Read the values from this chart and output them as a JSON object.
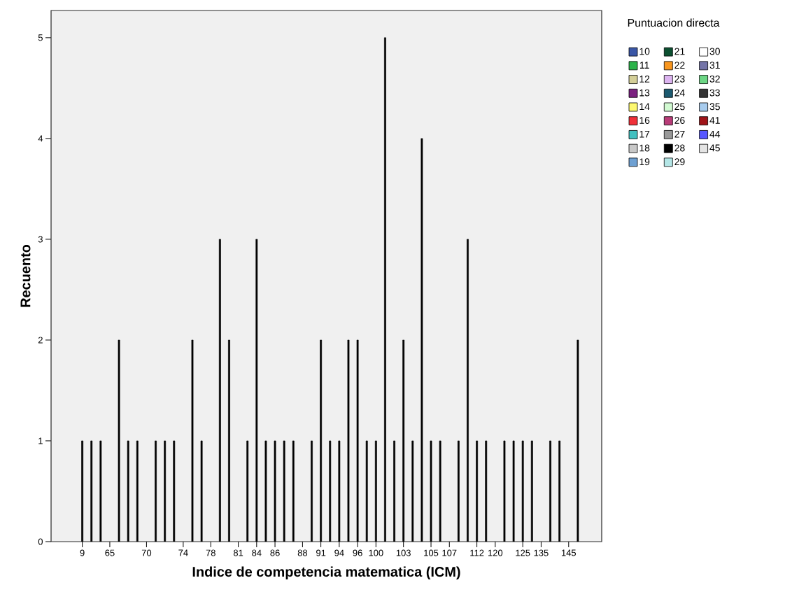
{
  "chart_data": {
    "type": "bar",
    "xlabel": "Indice de competencia matematica (ICM)",
    "ylabel": "Recuento",
    "legend_title": "Puntuacion directa",
    "legend": "top right",
    "categories": [
      "9",
      null,
      null,
      "65",
      null,
      null,
      null,
      "70",
      null,
      null,
      null,
      "74",
      null,
      null,
      "78",
      null,
      null,
      "81",
      null,
      "84",
      null,
      "86",
      null,
      null,
      "88",
      null,
      "91",
      null,
      "94",
      null,
      "96",
      null,
      "100",
      null,
      null,
      "103",
      null,
      null,
      "105",
      null,
      "107",
      null,
      null,
      "112",
      null,
      "120",
      null,
      null,
      "125",
      null,
      "135",
      null,
      null,
      "145",
      null
    ],
    "ylim": [
      0,
      5.27
    ],
    "yticks": [
      0,
      1,
      2,
      3,
      4,
      5
    ],
    "series": [
      {
        "color": "#000000",
        "values": [
          1,
          1,
          1,
          null,
          2,
          1,
          1,
          null,
          1,
          1,
          1,
          null,
          2,
          1,
          null,
          3,
          2,
          null,
          1,
          3,
          1,
          1,
          1,
          1,
          null,
          1,
          2,
          1,
          1,
          2,
          2,
          1,
          1,
          5,
          1,
          2,
          1,
          4,
          1,
          1,
          null,
          1,
          3,
          1,
          1,
          null,
          1,
          1,
          1,
          1,
          null,
          1,
          1,
          null,
          2
        ]
      },
      {
        "name": "10",
        "color": "#3a56a6",
        "values": [
          null,
          null,
          null,
          null,
          null,
          null,
          null,
          null,
          null,
          null,
          null,
          null,
          null,
          null,
          null,
          null,
          null,
          null,
          null,
          null,
          null,
          null,
          null,
          null,
          null,
          null,
          null,
          null,
          null,
          null,
          null,
          null,
          null,
          null,
          null,
          null,
          null,
          null,
          null,
          null,
          null,
          null,
          null,
          null,
          null,
          null,
          null,
          null,
          null,
          null,
          null,
          null,
          null,
          null,
          null
        ]
      },
      {
        "name": "11",
        "color": "#2cb34a",
        "values": [
          null,
          null,
          null,
          null,
          null,
          null,
          null,
          null,
          null,
          null,
          null,
          null,
          null,
          null,
          null,
          null,
          null,
          null,
          null,
          null,
          null,
          null,
          null,
          null,
          null,
          null,
          null,
          null,
          null,
          null,
          null,
          null,
          null,
          null,
          null,
          null,
          null,
          null,
          null,
          null,
          null,
          null,
          null,
          null,
          null,
          null,
          null,
          null,
          null,
          null,
          null,
          null,
          null,
          null,
          null
        ]
      },
      {
        "name": "12",
        "color": "#d4cf98",
        "values": [
          null,
          null,
          null,
          null,
          null,
          null,
          null,
          null,
          null,
          null,
          null,
          null,
          null,
          null,
          null,
          null,
          null,
          null,
          null,
          null,
          null,
          null,
          null,
          null,
          null,
          null,
          null,
          null,
          null,
          null,
          null,
          null,
          null,
          null,
          null,
          null,
          null,
          null,
          null,
          null,
          null,
          null,
          null,
          null,
          null,
          null,
          null,
          null,
          null,
          null,
          null,
          null,
          null,
          null,
          null
        ]
      },
      {
        "name": "13",
        "color": "#7b2180",
        "values": [
          null,
          null,
          null,
          null,
          null,
          null,
          null,
          null,
          null,
          null,
          null,
          null,
          null,
          null,
          null,
          null,
          null,
          null,
          null,
          null,
          null,
          null,
          null,
          null,
          null,
          null,
          null,
          null,
          null,
          null,
          null,
          null,
          null,
          null,
          null,
          null,
          null,
          null,
          null,
          null,
          null,
          null,
          null,
          null,
          null,
          null,
          null,
          null,
          null,
          null,
          null,
          null,
          null,
          null,
          null
        ]
      },
      {
        "name": "14",
        "color": "#fdf870",
        "values": [
          null,
          null,
          null,
          null,
          null,
          null,
          null,
          null,
          null,
          null,
          null,
          null,
          null,
          null,
          null,
          null,
          null,
          null,
          null,
          null,
          null,
          null,
          null,
          null,
          null,
          null,
          null,
          null,
          null,
          null,
          null,
          null,
          null,
          null,
          null,
          null,
          null,
          null,
          null,
          null,
          null,
          null,
          null,
          null,
          null,
          null,
          null,
          null,
          null,
          null,
          null,
          null,
          null,
          null,
          null
        ]
      },
      {
        "name": "16",
        "color": "#f03039",
        "values": [
          null,
          null,
          null,
          null,
          null,
          null,
          null,
          null,
          null,
          null,
          null,
          null,
          null,
          null,
          null,
          null,
          null,
          null,
          null,
          null,
          null,
          null,
          null,
          null,
          null,
          null,
          null,
          null,
          null,
          null,
          null,
          null,
          null,
          null,
          null,
          null,
          null,
          null,
          null,
          null,
          null,
          null,
          null,
          null,
          null,
          null,
          null,
          null,
          null,
          null,
          null,
          null,
          null,
          null,
          null
        ]
      },
      {
        "name": "17",
        "color": "#41c0c0",
        "values": [
          null,
          null,
          null,
          null,
          null,
          null,
          null,
          null,
          null,
          null,
          null,
          null,
          null,
          null,
          null,
          null,
          null,
          null,
          null,
          null,
          null,
          null,
          null,
          null,
          null,
          null,
          null,
          null,
          null,
          null,
          null,
          null,
          null,
          null,
          null,
          null,
          null,
          null,
          null,
          null,
          null,
          null,
          null,
          null,
          null,
          null,
          null,
          null,
          null,
          null,
          null,
          null,
          null,
          null,
          null
        ]
      },
      {
        "name": "18",
        "color": "#c8c8c8",
        "values": [
          null,
          null,
          null,
          null,
          null,
          null,
          null,
          null,
          null,
          null,
          null,
          null,
          null,
          null,
          null,
          null,
          null,
          null,
          null,
          null,
          null,
          null,
          null,
          null,
          null,
          null,
          null,
          null,
          null,
          null,
          null,
          null,
          null,
          null,
          null,
          null,
          null,
          null,
          null,
          null,
          null,
          null,
          null,
          null,
          null,
          null,
          null,
          null,
          null,
          null,
          null,
          null,
          null,
          null,
          null
        ]
      },
      {
        "name": "19",
        "color": "#6ea0d2",
        "values": [
          null,
          null,
          null,
          null,
          null,
          null,
          null,
          null,
          null,
          null,
          null,
          null,
          null,
          null,
          null,
          null,
          null,
          null,
          null,
          null,
          null,
          null,
          null,
          null,
          null,
          null,
          null,
          null,
          null,
          null,
          null,
          null,
          null,
          null,
          null,
          null,
          null,
          null,
          null,
          null,
          null,
          null,
          null,
          null,
          null,
          null,
          null,
          null,
          null,
          null,
          null,
          null,
          null,
          null,
          null
        ]
      },
      {
        "name": "21",
        "color": "#0c5030",
        "values": [
          null,
          null,
          null,
          null,
          null,
          null,
          null,
          null,
          null,
          null,
          null,
          null,
          null,
          null,
          null,
          null,
          null,
          null,
          null,
          null,
          null,
          null,
          null,
          null,
          null,
          null,
          null,
          null,
          null,
          null,
          null,
          null,
          null,
          null,
          null,
          null,
          null,
          null,
          null,
          null,
          null,
          null,
          null,
          null,
          null,
          null,
          null,
          null,
          null,
          null,
          null,
          null,
          null,
          null,
          null
        ]
      },
      {
        "name": "22",
        "color": "#f8961e",
        "values": [
          null,
          null,
          null,
          null,
          null,
          null,
          null,
          null,
          null,
          null,
          null,
          null,
          null,
          null,
          null,
          null,
          null,
          null,
          null,
          null,
          null,
          null,
          null,
          null,
          null,
          null,
          null,
          null,
          null,
          null,
          null,
          null,
          null,
          null,
          null,
          null,
          null,
          null,
          null,
          null,
          null,
          null,
          null,
          null,
          null,
          null,
          null,
          null,
          null,
          null,
          null,
          null,
          null,
          null,
          null
        ]
      },
      {
        "name": "23",
        "color": "#dcb4f0",
        "values": [
          null,
          null,
          null,
          null,
          null,
          null,
          null,
          null,
          null,
          null,
          null,
          null,
          null,
          null,
          null,
          null,
          null,
          null,
          null,
          null,
          null,
          null,
          null,
          null,
          null,
          null,
          null,
          null,
          null,
          null,
          null,
          null,
          null,
          null,
          null,
          null,
          null,
          null,
          null,
          null,
          null,
          null,
          null,
          null,
          null,
          null,
          null,
          null,
          null,
          null,
          null,
          null,
          null,
          null,
          null
        ]
      },
      {
        "name": "24",
        "color": "#1c5a70",
        "values": [
          null,
          null,
          null,
          null,
          null,
          null,
          null,
          null,
          null,
          null,
          null,
          null,
          null,
          null,
          null,
          null,
          null,
          null,
          null,
          null,
          null,
          null,
          null,
          null,
          null,
          null,
          null,
          null,
          null,
          null,
          null,
          null,
          null,
          null,
          null,
          null,
          null,
          null,
          null,
          null,
          null,
          null,
          null,
          null,
          null,
          null,
          null,
          null,
          null,
          null,
          null,
          null,
          null,
          null,
          null
        ]
      },
      {
        "name": "25",
        "color": "#d2fad2",
        "values": [
          null,
          null,
          null,
          null,
          null,
          null,
          null,
          null,
          null,
          null,
          null,
          null,
          null,
          null,
          null,
          null,
          null,
          null,
          null,
          null,
          null,
          null,
          null,
          null,
          null,
          null,
          null,
          null,
          null,
          null,
          null,
          null,
          null,
          null,
          null,
          null,
          null,
          null,
          null,
          null,
          null,
          null,
          null,
          null,
          null,
          null,
          null,
          null,
          null,
          null,
          null,
          null,
          null,
          null,
          null
        ]
      },
      {
        "name": "26",
        "color": "#b93c78",
        "values": [
          null,
          null,
          null,
          null,
          null,
          null,
          null,
          null,
          null,
          null,
          null,
          null,
          null,
          null,
          null,
          null,
          null,
          null,
          null,
          null,
          null,
          null,
          null,
          null,
          null,
          null,
          null,
          null,
          null,
          null,
          null,
          null,
          null,
          null,
          null,
          null,
          null,
          null,
          null,
          null,
          null,
          null,
          null,
          null,
          null,
          null,
          null,
          null,
          null,
          null,
          null,
          null,
          null,
          null,
          null
        ]
      },
      {
        "name": "27",
        "color": "#999999",
        "values": [
          null,
          null,
          null,
          null,
          null,
          null,
          null,
          null,
          null,
          null,
          null,
          null,
          null,
          null,
          null,
          null,
          null,
          null,
          null,
          null,
          null,
          null,
          null,
          null,
          null,
          null,
          null,
          null,
          null,
          null,
          null,
          null,
          null,
          null,
          null,
          null,
          null,
          null,
          null,
          null,
          null,
          null,
          null,
          null,
          null,
          null,
          null,
          null,
          null,
          null,
          null,
          null,
          null,
          null,
          null
        ]
      },
      {
        "name": "28",
        "color": "#000000",
        "values": [
          null,
          null,
          null,
          null,
          null,
          null,
          null,
          null,
          null,
          null,
          null,
          null,
          null,
          null,
          null,
          null,
          null,
          null,
          null,
          null,
          null,
          null,
          null,
          null,
          null,
          null,
          null,
          null,
          null,
          null,
          null,
          null,
          null,
          null,
          null,
          null,
          null,
          null,
          null,
          null,
          null,
          null,
          null,
          null,
          null,
          null,
          null,
          null,
          null,
          null,
          null,
          null,
          null,
          null,
          null
        ]
      },
      {
        "name": "29",
        "color": "#b4e6e6",
        "values": [
          null,
          null,
          null,
          null,
          null,
          null,
          null,
          null,
          null,
          null,
          null,
          null,
          null,
          null,
          null,
          null,
          null,
          null,
          null,
          null,
          null,
          null,
          null,
          null,
          null,
          null,
          null,
          null,
          null,
          null,
          null,
          null,
          null,
          null,
          null,
          null,
          null,
          null,
          null,
          null,
          null,
          null,
          null,
          null,
          null,
          null,
          null,
          null,
          null,
          null,
          null,
          null,
          null,
          null,
          null
        ]
      },
      {
        "name": "30",
        "color": "#ffffff",
        "values": [
          null,
          null,
          null,
          null,
          null,
          null,
          null,
          null,
          null,
          null,
          null,
          null,
          null,
          null,
          null,
          null,
          null,
          null,
          null,
          null,
          null,
          null,
          null,
          null,
          null,
          null,
          null,
          null,
          null,
          null,
          null,
          null,
          null,
          null,
          null,
          null,
          null,
          null,
          null,
          null,
          null,
          null,
          null,
          null,
          null,
          null,
          null,
          null,
          null,
          null,
          null,
          null,
          null,
          null,
          null
        ]
      },
      {
        "name": "31",
        "color": "#7474a8",
        "values": [
          null,
          null,
          null,
          null,
          null,
          null,
          null,
          null,
          null,
          null,
          null,
          null,
          null,
          null,
          null,
          null,
          null,
          null,
          null,
          null,
          null,
          null,
          null,
          null,
          null,
          null,
          null,
          null,
          null,
          null,
          null,
          null,
          null,
          null,
          null,
          null,
          null,
          null,
          null,
          null,
          null,
          null,
          null,
          null,
          null,
          null,
          null,
          null,
          null,
          null,
          null,
          null,
          null,
          null,
          null
        ]
      },
      {
        "name": "32",
        "color": "#6cd684",
        "values": [
          null,
          null,
          null,
          null,
          null,
          null,
          null,
          null,
          null,
          null,
          null,
          null,
          null,
          null,
          null,
          null,
          null,
          null,
          null,
          null,
          null,
          null,
          null,
          null,
          null,
          null,
          null,
          null,
          null,
          null,
          null,
          null,
          null,
          null,
          null,
          null,
          null,
          null,
          null,
          null,
          null,
          null,
          null,
          null,
          null,
          null,
          null,
          null,
          null,
          null,
          null,
          null,
          null,
          null,
          null
        ]
      },
      {
        "name": "33",
        "color": "#333333",
        "values": [
          null,
          null,
          null,
          null,
          null,
          null,
          null,
          null,
          null,
          null,
          null,
          null,
          null,
          null,
          null,
          null,
          null,
          null,
          null,
          null,
          null,
          null,
          null,
          null,
          null,
          null,
          null,
          null,
          null,
          null,
          null,
          null,
          null,
          null,
          null,
          null,
          null,
          null,
          null,
          null,
          null,
          null,
          null,
          null,
          null,
          null,
          null,
          null,
          null,
          null,
          null,
          null,
          null,
          null,
          null
        ]
      },
      {
        "name": "35",
        "color": "#a8ccee",
        "values": [
          null,
          null,
          null,
          null,
          null,
          null,
          null,
          null,
          null,
          null,
          null,
          null,
          null,
          null,
          null,
          null,
          null,
          null,
          null,
          null,
          null,
          null,
          null,
          null,
          null,
          null,
          null,
          null,
          null,
          null,
          null,
          null,
          null,
          null,
          null,
          null,
          null,
          null,
          null,
          null,
          null,
          null,
          null,
          null,
          null,
          null,
          null,
          null,
          null,
          null,
          null,
          null,
          null,
          null,
          null
        ]
      },
      {
        "name": "41",
        "color": "#a01418",
        "values": [
          null,
          null,
          null,
          null,
          null,
          null,
          null,
          null,
          null,
          null,
          null,
          null,
          null,
          null,
          null,
          null,
          null,
          null,
          null,
          null,
          null,
          null,
          null,
          null,
          null,
          null,
          null,
          null,
          null,
          null,
          null,
          null,
          null,
          null,
          null,
          null,
          null,
          null,
          null,
          null,
          null,
          null,
          null,
          null,
          null,
          null,
          null,
          null,
          null,
          null,
          null,
          null,
          null,
          null,
          null
        ]
      },
      {
        "name": "44",
        "color": "#5656ff",
        "values": [
          null,
          null,
          null,
          null,
          null,
          null,
          null,
          null,
          null,
          null,
          null,
          null,
          null,
          null,
          null,
          null,
          null,
          null,
          null,
          null,
          null,
          null,
          null,
          null,
          null,
          null,
          null,
          null,
          null,
          null,
          null,
          null,
          null,
          null,
          null,
          null,
          null,
          null,
          null,
          null,
          null,
          null,
          null,
          null,
          null,
          null,
          null,
          null,
          null,
          null,
          null,
          null,
          null,
          null,
          null
        ]
      },
      {
        "name": "45",
        "color": "#e4e4e4",
        "values": [
          null,
          null,
          null,
          null,
          null,
          null,
          null,
          null,
          null,
          null,
          null,
          null,
          null,
          null,
          null,
          null,
          null,
          null,
          null,
          null,
          null,
          null,
          null,
          null,
          null,
          null,
          null,
          null,
          null,
          null,
          null,
          null,
          null,
          null,
          null,
          null,
          null,
          null,
          null,
          null,
          null,
          null,
          null,
          null,
          null,
          null,
          null,
          null,
          null,
          null,
          null,
          null,
          null,
          null,
          null
        ]
      }
    ]
  }
}
